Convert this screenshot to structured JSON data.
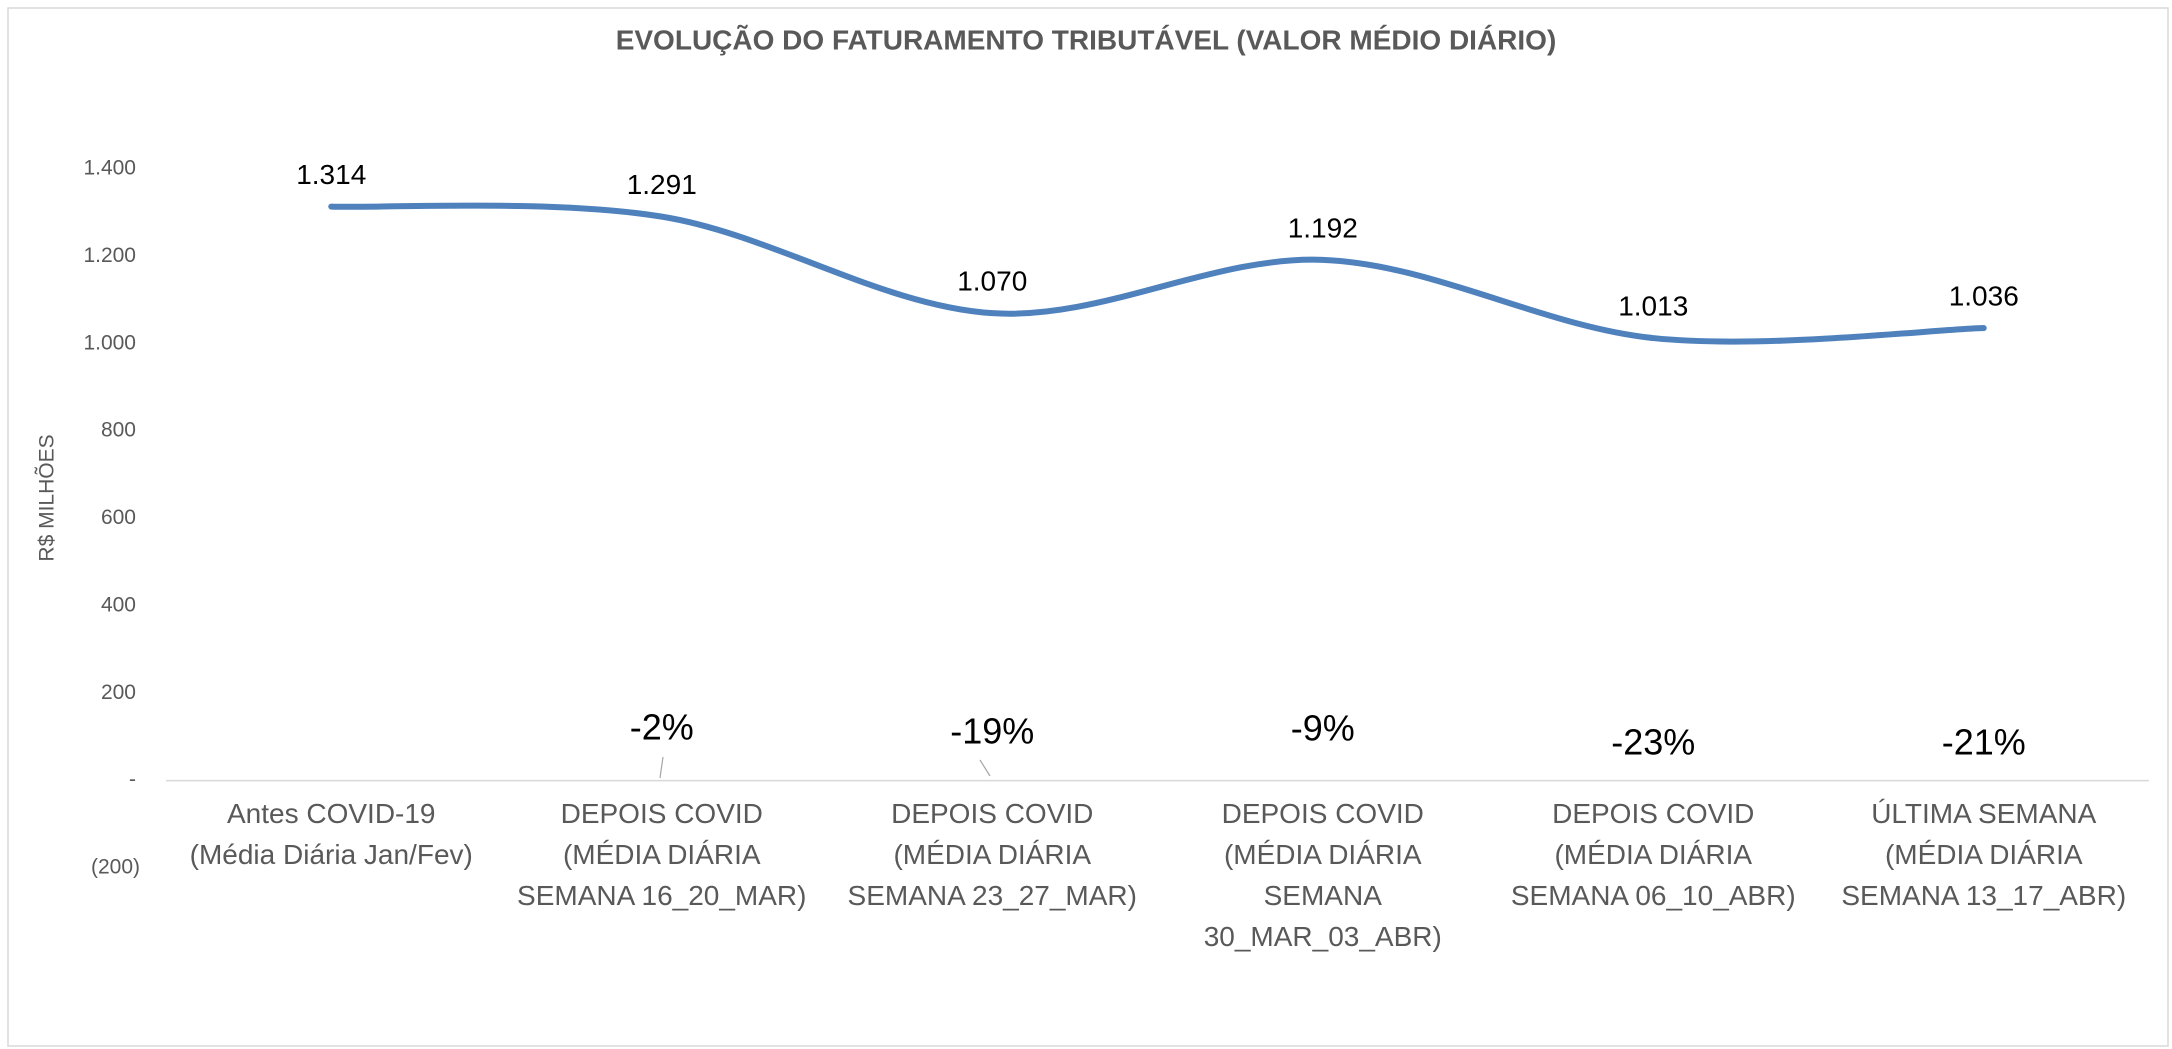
{
  "chart_data": {
    "type": "line",
    "title": "EVOLUÇÃO DO FATURAMENTO TRIBUTÁVEL (VALOR MÉDIO DIÁRIO)",
    "y_label": "R$ MILHÕES",
    "categories": [
      "Antes COVID-19\n(Média Diária Jan/Fev)",
      "DEPOIS COVID\n(MÉDIA DIÁRIA\nSEMANA 16_20_MAR)",
      "DEPOIS COVID\n(MÉDIA DIÁRIA\nSEMANA 23_27_MAR)",
      "DEPOIS COVID\n(MÉDIA DIÁRIA\nSEMANA\n30_MAR_03_ABR)",
      "DEPOIS COVID\n(MÉDIA DIÁRIA\nSEMANA 06_10_ABR)",
      "ÚLTIMA SEMANA\n(MÉDIA DIÁRIA\nSEMANA 13_17_ABR)"
    ],
    "values": [
      1314,
      1291,
      1070,
      1192,
      1013,
      1036
    ],
    "value_labels": [
      "1.314",
      "1.291",
      "1.070",
      "1.192",
      "1.013",
      "1.036"
    ],
    "color": "#4f81bd",
    "smooth": true,
    "annotations": [
      null,
      "-2%",
      "-19%",
      "-9%",
      "-23%",
      "-21%"
    ],
    "ylim": [
      -200,
      1400
    ],
    "yticks": [
      {
        "value": -200,
        "label": "(200)"
      },
      {
        "value": 0,
        "label": "-"
      },
      200,
      400,
      600,
      800,
      {
        "value": 1000,
        "label": "1.000"
      },
      {
        "value": 1200,
        "label": "1.200"
      },
      {
        "value": 1400,
        "label": "1.400"
      }
    ]
  }
}
